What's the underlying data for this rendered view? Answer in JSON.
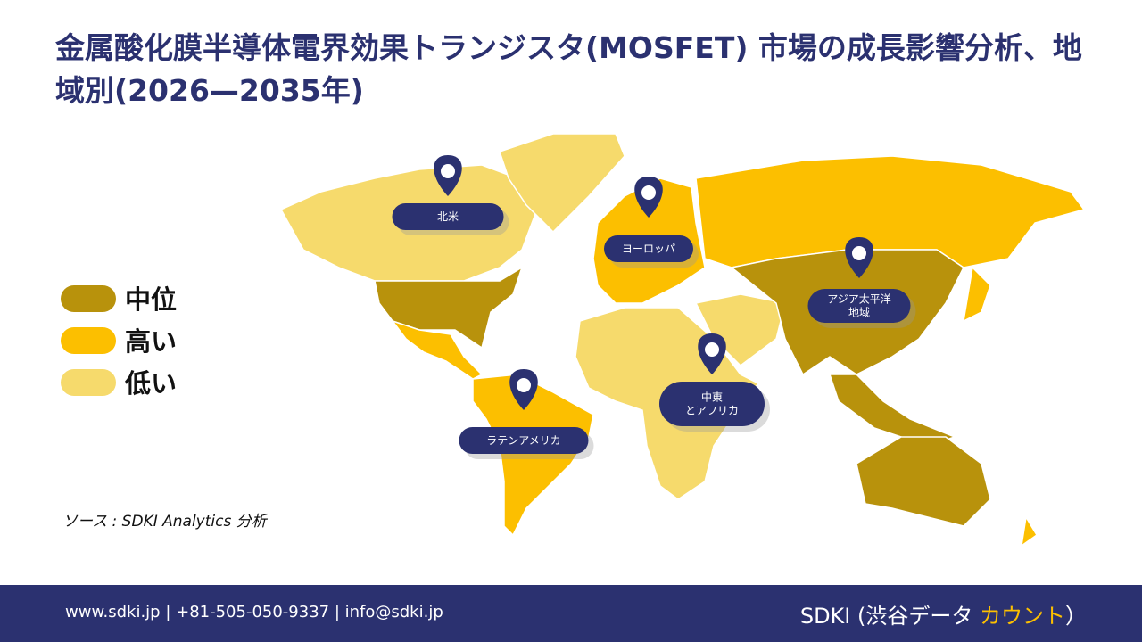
{
  "header": {
    "title": "金属酸化膜半導体電界効果トランジスタ(MOSFET) 市場の成長影響分析、地域別(2026—2035年)"
  },
  "legend": [
    {
      "label": "中位",
      "color": "#b8920c"
    },
    {
      "label": "高い",
      "color": "#fcbf00"
    },
    {
      "label": "低い",
      "color": "#f6da6c"
    }
  ],
  "regions": [
    {
      "lines": [
        "北米"
      ]
    },
    {
      "lines": [
        "ヨーロッパ"
      ]
    },
    {
      "lines": [
        "アジア太平洋",
        "地域"
      ]
    },
    {
      "lines": [
        "中東",
        "とアフリカ"
      ]
    },
    {
      "lines": [
        "ラテンアメリカ"
      ]
    }
  ],
  "source": "ソース : SDKI Analytics 分析",
  "footer": {
    "contact": "www.sdki.jp | +81-505-050-9337 | info@sdki.jp",
    "brand": [
      "SDKI (渋谷データ ",
      "カウント",
      "）"
    ]
  }
}
